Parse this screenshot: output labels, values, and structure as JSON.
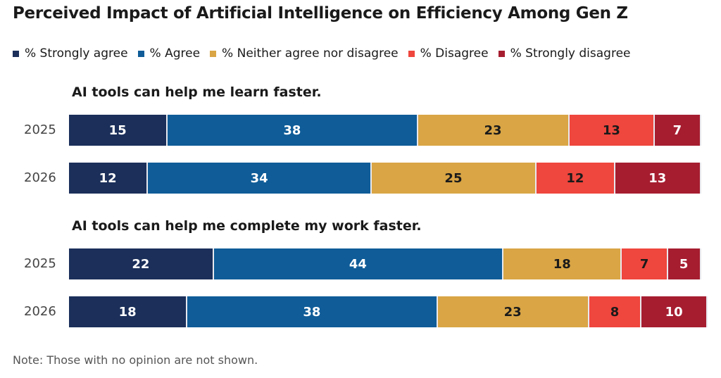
{
  "chart_data": {
    "type": "bar",
    "stacked": true,
    "orientation": "horizontal",
    "title": "Perceived Impact of Artificial Intelligence on Efficiency Among Gen Z",
    "legend": [
      "% Strongly agree",
      "% Agree",
      "% Neither agree nor disagree",
      "% Disagree",
      "% Strongly disagree"
    ],
    "colors": [
      "#1b2f5a",
      "#0f5c98",
      "#d9a545",
      "#ef463d",
      "#a61d30"
    ],
    "label_colors": [
      "#ffffff",
      "#ffffff",
      "#1a1a1a",
      "#1a1a1a",
      "#ffffff"
    ],
    "groups": [
      {
        "subtitle": "AI tools can help me learn faster.",
        "rows": [
          {
            "year": "2025",
            "values": [
              15,
              38,
              23,
              13,
              7
            ]
          },
          {
            "year": "2026",
            "values": [
              12,
              34,
              25,
              12,
              13
            ]
          }
        ]
      },
      {
        "subtitle": "AI tools can help me complete my work faster.",
        "rows": [
          {
            "year": "2025",
            "values": [
              22,
              44,
              18,
              7,
              5
            ]
          },
          {
            "year": "2026",
            "values": [
              18,
              38,
              23,
              8,
              10
            ]
          }
        ]
      }
    ],
    "xlim": [
      0,
      100
    ],
    "note": "Note: Those with no opinion are not shown."
  }
}
